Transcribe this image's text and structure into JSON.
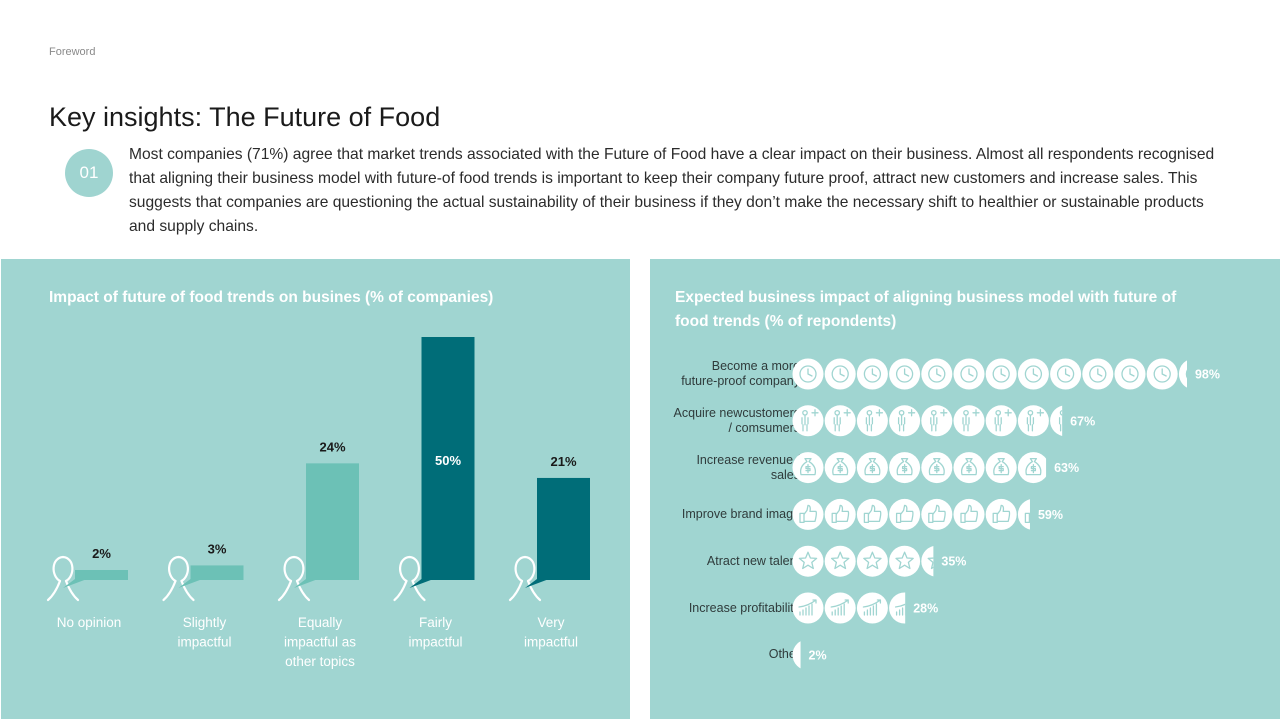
{
  "header": {
    "section_label": "Foreword",
    "title": "Key insights: The Future of Food",
    "badge": "01",
    "intro": "Most companies (71%) agree that market trends associated with the Future of Food have a clear impact on their business. Almost all respondents recognised that aligning their business model with future-of food trends is important to keep their company future proof, attract new customers and increase sales. This suggests that companies are questioning the actual sustainability of their business if they don’t make the necessary shift to healthier or sustainable products and supply chains."
  },
  "colors": {
    "panel_bg": "#a0d5d1",
    "light_bar": "#6cc1b6",
    "dark_bar": "#006d78",
    "white": "#ffffff"
  },
  "chart_data": [
    {
      "type": "bar",
      "title": "Impact of future of food trends on busines (% of companies)",
      "categories": [
        "No opinion",
        "Slightly impactful",
        "Equally impactful as other topics",
        "Fairly impactful",
        "Very impactful"
      ],
      "category_lines": [
        [
          "No opinion"
        ],
        [
          "Slightly",
          "impactful"
        ],
        [
          "Equally",
          "impactful as",
          "other topics"
        ],
        [
          "Fairly",
          "impactful"
        ],
        [
          "Very",
          "impactful"
        ]
      ],
      "values": [
        2,
        3,
        24,
        50,
        21
      ],
      "value_labels": [
        "2%",
        "3%",
        "24%",
        "50%",
        "21%"
      ],
      "bar_colors": [
        "light",
        "light",
        "light",
        "dark",
        "dark"
      ],
      "label_inside": [
        false,
        false,
        false,
        true,
        false
      ],
      "ylim": [
        0,
        50
      ],
      "icon": "person-speech-icon"
    },
    {
      "type": "bar",
      "orientation": "horizontal",
      "title_lines": [
        "Expected business impact of aligning business model with future of",
        "food trends (% of repondents)"
      ],
      "units_per_icon": 8,
      "items": [
        {
          "label_lines": [
            "Become a more",
            "future-proof company"
          ],
          "value": 98,
          "value_label": "98%",
          "icon": "clock-icon"
        },
        {
          "label_lines": [
            "Acquire newcustomers",
            "/ comsumers"
          ],
          "value": 67,
          "value_label": "67%",
          "icon": "person-add-icon"
        },
        {
          "label_lines": [
            "Increase revenue /",
            "sales"
          ],
          "value": 63,
          "value_label": "63%",
          "icon": "money-bag-icon"
        },
        {
          "label_lines": [
            "Improve brand image"
          ],
          "value": 59,
          "value_label": "59%",
          "icon": "thumbs-up-icon"
        },
        {
          "label_lines": [
            "Atract new talent"
          ],
          "value": 35,
          "value_label": "35%",
          "icon": "star-icon"
        },
        {
          "label_lines": [
            "Increase profitability"
          ],
          "value": 28,
          "value_label": "28%",
          "icon": "growth-chart-icon"
        },
        {
          "label_lines": [
            "Other"
          ],
          "value": 2,
          "value_label": "2%",
          "icon": "circle-icon"
        }
      ]
    }
  ]
}
